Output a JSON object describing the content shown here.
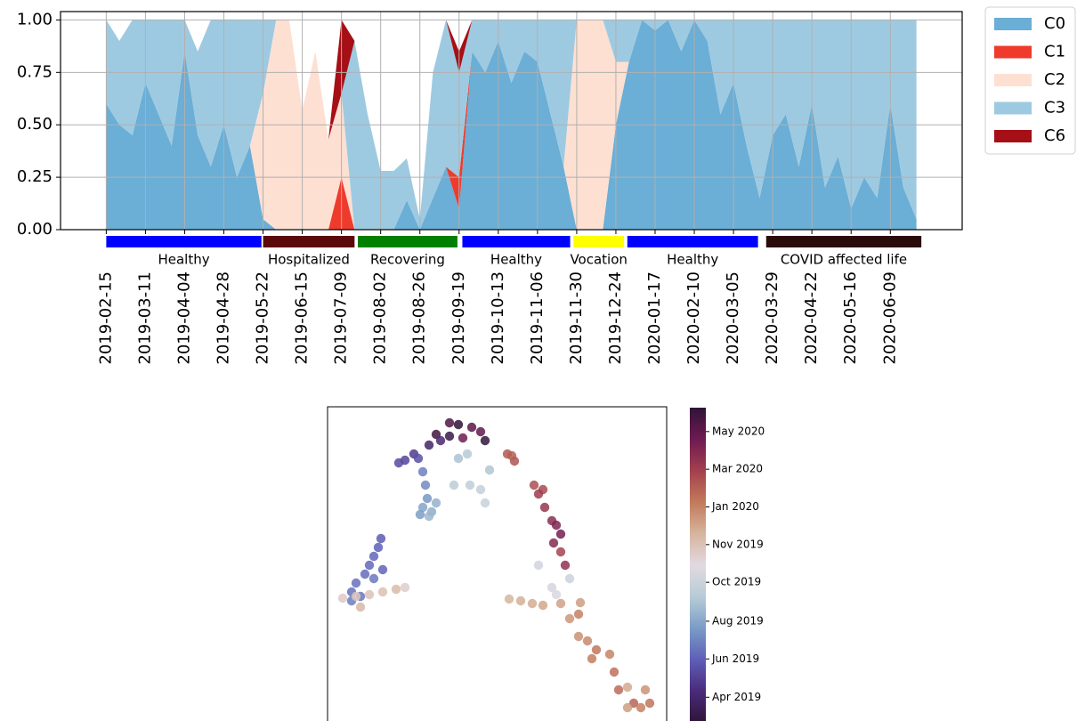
{
  "chart_data": [
    {
      "type": "stacked_area",
      "x": [
        "2019-02-15",
        "2019-02-23",
        "2019-03-03",
        "2019-03-11",
        "2019-03-19",
        "2019-03-27",
        "2019-04-04",
        "2019-04-12",
        "2019-04-20",
        "2019-04-28",
        "2019-05-06",
        "2019-05-14",
        "2019-05-22",
        "2019-05-30",
        "2019-06-07",
        "2019-06-15",
        "2019-06-23",
        "2019-07-01",
        "2019-07-09",
        "2019-07-17",
        "2019-07-25",
        "2019-08-02",
        "2019-08-10",
        "2019-08-18",
        "2019-08-26",
        "2019-09-03",
        "2019-09-11",
        "2019-09-19",
        "2019-09-27",
        "2019-10-05",
        "2019-10-13",
        "2019-10-21",
        "2019-10-29",
        "2019-11-06",
        "2019-11-14",
        "2019-11-22",
        "2019-11-30",
        "2019-12-08",
        "2019-12-16",
        "2019-12-24",
        "2020-01-01",
        "2020-01-09",
        "2020-01-17",
        "2020-01-25",
        "2020-02-02",
        "2020-02-10",
        "2020-02-18",
        "2020-02-26",
        "2020-03-05",
        "2020-03-13",
        "2020-03-21",
        "2020-03-29",
        "2020-04-06",
        "2020-04-14",
        "2020-04-22",
        "2020-04-30",
        "2020-05-08",
        "2020-05-16",
        "2020-05-24",
        "2020-06-01",
        "2020-06-09",
        "2020-06-17",
        "2020-06-25"
      ],
      "series": [
        {
          "name": "C0",
          "color": "#6baed6",
          "values": [
            0.6,
            0.5,
            0.45,
            0.7,
            0.55,
            0.4,
            0.85,
            0.45,
            0.3,
            0.5,
            0.25,
            0.4,
            0.05,
            0,
            0,
            0,
            0,
            0,
            0,
            0,
            0,
            0,
            0,
            0.14,
            0,
            0.15,
            0.3,
            0.1,
            0.85,
            0.75,
            0.9,
            0.7,
            0.85,
            0.8,
            0.55,
            0.3,
            0,
            0,
            0,
            0.5,
            0.8,
            1,
            0.95,
            1,
            0.85,
            1,
            0.9,
            0.55,
            0.7,
            0.4,
            0.15,
            0.45,
            0.55,
            0.3,
            0.6,
            0.2,
            0.35,
            0.1,
            0.25,
            0.15,
            0.6,
            0.2,
            0.05
          ]
        },
        {
          "name": "C1",
          "color": "#ef3b2c",
          "values": [
            0,
            0,
            0,
            0,
            0,
            0,
            0,
            0,
            0,
            0,
            0,
            0,
            0,
            0,
            0,
            0,
            0,
            0,
            0.25,
            0,
            0,
            0,
            0,
            0,
            0,
            0,
            0,
            0.15,
            0,
            0,
            0,
            0,
            0,
            0,
            0,
            0,
            0,
            0,
            0,
            0,
            0,
            0,
            0,
            0,
            0,
            0,
            0,
            0,
            0,
            0,
            0,
            0,
            0,
            0,
            0,
            0,
            0,
            0,
            0,
            0,
            0,
            0,
            0
          ]
        },
        {
          "name": "C2",
          "color": "#fee0d2",
          "values": [
            0,
            0,
            0,
            0,
            0,
            0,
            0,
            0,
            0,
            0,
            0,
            0,
            0.6,
            1,
            1,
            0.57,
            0.85,
            0.43,
            0.4,
            0,
            0,
            0,
            0,
            0,
            0,
            0,
            0,
            0,
            0,
            0,
            0,
            0,
            0,
            0,
            0,
            0,
            1,
            1,
            1,
            0.3,
            0,
            0,
            0,
            0,
            0,
            0,
            0,
            0,
            0,
            0,
            0,
            0,
            0,
            0,
            0,
            0,
            0,
            0,
            0,
            0,
            0,
            0,
            0
          ]
        },
        {
          "name": "C3",
          "color": "#9ecae1",
          "values": [
            0.4,
            0.4,
            0.55,
            0.3,
            0.45,
            0.6,
            0.15,
            0.4,
            0.7,
            0.5,
            0.75,
            0.6,
            0.35,
            0,
            0,
            0,
            0,
            0,
            0,
            0.9,
            0.55,
            0.28,
            0.28,
            0.2,
            0.05,
            0.6,
            0.7,
            0.5,
            0.15,
            0.25,
            0.1,
            0.3,
            0.15,
            0.2,
            0.45,
            0.7,
            0,
            0,
            0,
            0.2,
            0.2,
            0,
            0.05,
            0,
            0.15,
            0,
            0.1,
            0.45,
            0.3,
            0.6,
            0.85,
            0.55,
            0.45,
            0.7,
            0.4,
            0.8,
            0.65,
            0.9,
            0.75,
            0.85,
            0.4,
            0.8,
            0.95
          ]
        },
        {
          "name": "C6",
          "color": "#a50f15",
          "values": [
            0,
            0,
            0,
            0,
            0,
            0,
            0,
            0,
            0,
            0,
            0,
            0,
            0,
            0,
            0,
            0,
            0,
            0,
            0.35,
            0,
            0,
            0,
            0,
            0,
            0,
            0,
            0,
            0.1,
            0,
            0,
            0,
            0,
            0,
            0,
            0,
            0,
            0,
            0,
            0,
            0,
            0,
            0,
            0,
            0,
            0,
            0,
            0,
            0,
            0,
            0,
            0,
            0,
            0,
            0,
            0,
            0,
            0,
            0,
            0,
            0,
            0,
            0,
            0
          ]
        }
      ],
      "xlim": [
        "2019-01-18",
        "2020-07-23"
      ],
      "xticks": [
        "2019-02-15",
        "2019-03-11",
        "2019-04-04",
        "2019-04-28",
        "2019-05-22",
        "2019-06-15",
        "2019-07-09",
        "2019-08-02",
        "2019-08-26",
        "2019-09-19",
        "2019-10-13",
        "2019-11-06",
        "2019-11-30",
        "2019-12-24",
        "2020-01-17",
        "2020-02-10",
        "2020-03-05",
        "2020-03-29",
        "2020-04-22",
        "2020-05-16",
        "2020-06-09"
      ],
      "ylim": [
        0,
        1.04
      ],
      "yticks": [
        {
          "value": 0,
          "label": "0.00"
        },
        {
          "value": 0.25,
          "label": "0.25"
        },
        {
          "value": 0.5,
          "label": "0.50"
        },
        {
          "value": 0.75,
          "label": "0.75"
        },
        {
          "value": 1,
          "label": "1.00"
        }
      ],
      "grid": true,
      "legend": "outside upper right",
      "periods": [
        {
          "label": "Healthy",
          "start": "2019-02-15",
          "end": "2019-05-21",
          "color": "#0000ff"
        },
        {
          "label": "Hospitalized",
          "start": "2019-05-22",
          "end": "2019-07-17",
          "color": "#5a0a0a"
        },
        {
          "label": "Recovering",
          "start": "2019-07-19",
          "end": "2019-09-18",
          "color": "#008000"
        },
        {
          "label": "Healthy",
          "start": "2019-09-21",
          "end": "2019-11-26",
          "color": "#0000ff"
        },
        {
          "label": "Vocation",
          "start": "2019-11-28",
          "end": "2019-12-29",
          "color": "#ffff00"
        },
        {
          "label": "Healthy",
          "start": "2019-12-31",
          "end": "2020-03-20",
          "color": "#0000ff"
        },
        {
          "label": "COVID affected life",
          "start": "2020-03-25",
          "end": "2020-06-28",
          "color": "#2a0a0a"
        }
      ]
    },
    {
      "type": "scatter",
      "x": [
        12.2,
        13.7,
        14.7,
        16.2,
        17.2,
        17.7,
        15.2,
        13.7,
        11.4,
        12.7,
        9.7,
        8.7,
        8.0,
        10.2,
        10.7,
        11.0,
        11.2,
        10.7,
        11.7,
        12.2,
        10.4,
        11.4,
        14.7,
        15.7,
        14.2,
        16.0,
        17.2,
        17.7,
        18.2,
        6.0,
        5.7,
        5.2,
        4.7,
        4.2,
        3.2,
        2.7,
        3.7,
        5.2,
        6.2,
        2.7,
        1.7,
        3.2,
        4.7,
        6.2,
        7.7,
        8.7,
        3.7,
        20.2,
        21.0,
        20.7,
        23.2,
        24.2,
        23.7,
        24.4,
        25.2,
        25.7,
        26.2,
        25.4,
        26.2,
        26.7,
        23.7,
        25.2,
        25.7,
        27.2,
        20.4,
        21.7,
        23.0,
        24.2,
        26.2,
        28.4,
        27.2,
        28.2,
        28.2,
        29.2,
        29.7,
        30.2,
        31.7,
        32.2,
        32.7,
        33.7,
        34.4,
        35.2,
        35.7,
        36.2,
        33.7
      ],
      "y": [
        32.0,
        33.3,
        33.1,
        32.8,
        32.3,
        31.3,
        31.6,
        31.8,
        30.8,
        31.3,
        29.8,
        29.1,
        28.8,
        29.3,
        27.8,
        26.3,
        24.8,
        23.8,
        23.3,
        24.3,
        23.0,
        22.8,
        29.3,
        29.8,
        26.3,
        26.3,
        25.8,
        24.3,
        28.0,
        20.3,
        19.3,
        18.3,
        17.3,
        16.3,
        15.3,
        14.3,
        13.8,
        15.8,
        16.8,
        13.3,
        13.6,
        13.8,
        14.0,
        14.3,
        14.6,
        14.8,
        12.6,
        29.8,
        29.0,
        29.6,
        26.3,
        25.8,
        25.3,
        23.8,
        22.3,
        21.8,
        20.8,
        19.8,
        18.8,
        17.3,
        17.3,
        14.8,
        14.0,
        15.8,
        13.5,
        13.3,
        13.0,
        12.8,
        13.0,
        13.1,
        11.3,
        11.8,
        9.3,
        8.8,
        6.8,
        7.8,
        7.3,
        5.3,
        3.3,
        3.6,
        1.8,
        1.3,
        3.3,
        1.8,
        1.3
      ],
      "dates": [
        "2020-06-20",
        "2020-06-10",
        "2019-02-20",
        "2020-06-01",
        "2020-05-25",
        "2019-03-01",
        "2020-05-15",
        "2019-03-10",
        "2019-04-01",
        "2019-04-10",
        "2019-05-01",
        "2019-05-10",
        "2019-05-15",
        "2019-05-20",
        "2019-07-01",
        "2019-07-10",
        "2019-07-20",
        "2019-08-01",
        "2019-08-10",
        "2019-08-15",
        "2019-07-25",
        "2019-08-20",
        "2019-09-01",
        "2019-09-10",
        "2019-09-15",
        "2019-09-20",
        "2019-09-25",
        "2019-10-01",
        "2019-09-05",
        "2019-06-01",
        "2019-06-05",
        "2019-06-10",
        "2019-06-12",
        "2019-06-15",
        "2019-06-18",
        "2019-06-20",
        "2019-06-22",
        "2019-06-25",
        "2019-06-08",
        "2019-06-28",
        "2019-11-20",
        "2019-11-25",
        "2019-12-01",
        "2019-12-05",
        "2019-12-10",
        "2019-11-15",
        "2019-12-15",
        "2020-03-05",
        "2020-03-10",
        "2020-03-01",
        "2020-03-15",
        "2020-03-20",
        "2020-04-01",
        "2020-04-10",
        "2020-04-20",
        "2020-05-01",
        "2020-05-10",
        "2020-04-25",
        "2020-03-25",
        "2020-04-15",
        "2019-10-10",
        "2019-10-15",
        "2019-10-20",
        "2019-10-05",
        "2019-12-20",
        "2019-12-25",
        "2019-12-28",
        "2020-01-01",
        "2020-01-05",
        "2020-01-10",
        "2020-01-15",
        "2020-02-01",
        "2020-01-20",
        "2020-01-25",
        "2020-02-05",
        "2020-02-10",
        "2020-01-30",
        "2020-02-15",
        "2020-02-20",
        "2019-12-30",
        "2020-02-25",
        "2020-02-01",
        "2020-01-18",
        "2020-02-12",
        "2020-01-08"
      ],
      "xlim": [
        0,
        38.1
      ],
      "ylim": [
        0,
        35.1
      ],
      "colorbar": {
        "lim": [
          "2019-02-25",
          "2020-07-05"
        ],
        "ticks": [
          {
            "value": "2019-04-01",
            "label": "Apr 2019"
          },
          {
            "value": "2019-06-01",
            "label": "Jun 2019"
          },
          {
            "value": "2019-07-31",
            "label": "Aug 2019"
          },
          {
            "value": "2019-10-01",
            "label": "Oct 2019"
          },
          {
            "value": "2019-11-30",
            "label": "Nov 2019"
          },
          {
            "value": "2020-01-29",
            "label": "Jan 2020"
          },
          {
            "value": "2020-03-29",
            "label": "Mar 2020"
          },
          {
            "value": "2020-05-28",
            "label": "May 2020"
          }
        ],
        "colormap": [
          "#2f1436",
          "#4b2a7a",
          "#5e5fb8",
          "#7a9cc6",
          "#b7ccd6",
          "#e2d9e2",
          "#d6b59c",
          "#c27a5c",
          "#a3404e",
          "#6e1a52",
          "#2f1436"
        ]
      }
    }
  ]
}
